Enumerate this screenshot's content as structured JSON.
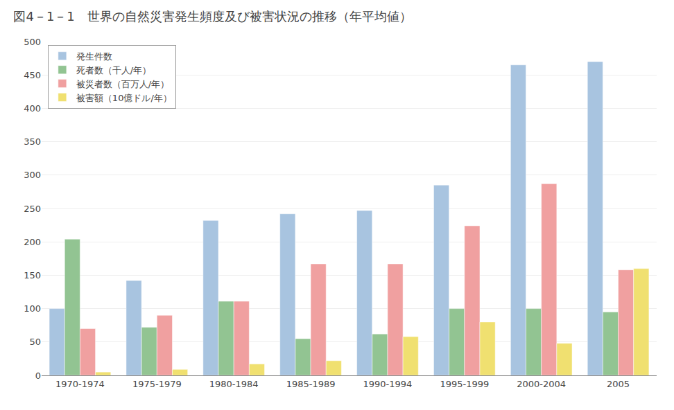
{
  "chart_data": {
    "type": "bar",
    "title": "図4－1－1　世界の自然災害発生頻度及び被害状況の推移（年平均値）",
    "categories": [
      "1970-1974",
      "1975-1979",
      "1980-1984",
      "1985-1989",
      "1990-1994",
      "1995-1999",
      "2000-2004",
      "2005"
    ],
    "series": [
      {
        "name": "発生件数",
        "color": "#a8c4e0",
        "values": [
          100,
          142,
          232,
          242,
          247,
          285,
          465,
          470
        ]
      },
      {
        "name": "死者数（千人/年）",
        "color": "#92c492",
        "values": [
          204,
          72,
          111,
          55,
          62,
          100,
          100,
          95
        ]
      },
      {
        "name": "被災者数（百万人/年）",
        "color": "#f0a0a0",
        "values": [
          70,
          90,
          111,
          167,
          167,
          224,
          287,
          158
        ]
      },
      {
        "name": "被害額（10億ドル/年）",
        "color": "#f0e070",
        "values": [
          5,
          9,
          17,
          22,
          58,
          80,
          48,
          160
        ]
      }
    ],
    "ylim": [
      0,
      500
    ],
    "yticks": [
      0,
      50,
      100,
      150,
      200,
      250,
      300,
      350,
      400,
      450,
      500
    ],
    "grid": true,
    "legend": "upper left"
  }
}
